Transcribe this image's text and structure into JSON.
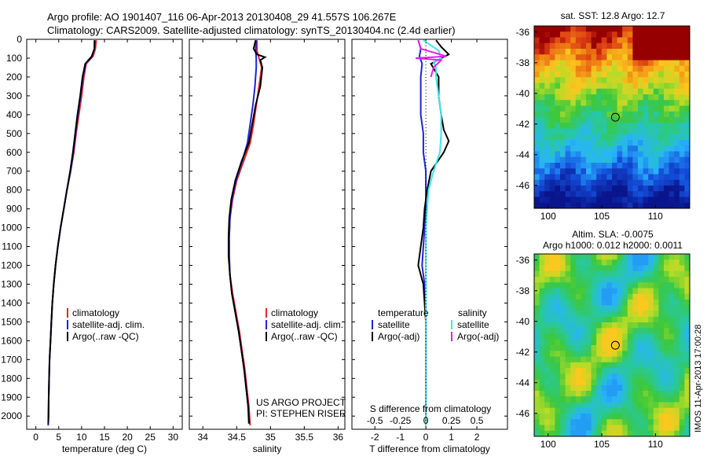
{
  "title_line1": "Argo profile: AO 1901407_116 06-Apr-2013 20130408_29 41.557S 106.267E",
  "title_line2": "Climatology: CARS2009. Satellite-adjusted climatology: synTS_20130404.nc (2.4d earlier)",
  "watermark": "IMOS 11-Apr-2013 17:00:28",
  "credits": [
    "US ARGO PROJECT",
    "PI: STEPHEN RISER"
  ],
  "colors": {
    "climatology": "#e8232a",
    "satellite": "#1d24d8",
    "argo": "#000000",
    "salinity_sat": "#3ee6e6",
    "salinity_argo": "#e61ee6"
  },
  "chart_data": [
    {
      "type": "line",
      "id": "temperature",
      "xlabel": "temperature (deg C)",
      "xlim": [
        -2,
        32
      ],
      "xticks": [
        "0",
        "5",
        "10",
        "15",
        "20",
        "25",
        "30"
      ],
      "ylim": [
        0,
        2070
      ],
      "yticks": [
        "0",
        "100",
        "200",
        "300",
        "400",
        "500",
        "600",
        "700",
        "800",
        "900",
        "1000",
        "1100",
        "1200",
        "1300",
        "1400",
        "1500",
        "1600",
        "1700",
        "1800",
        "1900",
        "2000"
      ],
      "legend": [
        "climatology",
        "satellite-adj. clim.",
        "Argo(..raw -QC)"
      ],
      "series": [
        {
          "name": "climatology",
          "points": [
            [
              13.2,
              5
            ],
            [
              13,
              50
            ],
            [
              12.5,
              90
            ],
            [
              11,
              130
            ],
            [
              10.5,
              200
            ],
            [
              10,
              300
            ],
            [
              9.4,
              400
            ],
            [
              8.8,
              500
            ],
            [
              8.3,
              600
            ],
            [
              7.6,
              700
            ],
            [
              6.8,
              800
            ],
            [
              6.1,
              900
            ],
            [
              5.4,
              1000
            ],
            [
              4.8,
              1100
            ],
            [
              4.3,
              1200
            ],
            [
              3.9,
              1300
            ],
            [
              3.6,
              1400
            ],
            [
              3.4,
              1500
            ],
            [
              3.2,
              1600
            ],
            [
              3.0,
              1700
            ],
            [
              2.9,
              1800
            ],
            [
              2.8,
              1900
            ],
            [
              2.75,
              2000
            ],
            [
              2.7,
              2050
            ]
          ]
        },
        {
          "name": "satellite-adj. clim.",
          "points": [
            [
              12.9,
              5
            ],
            [
              12.8,
              50
            ],
            [
              12.3,
              90
            ],
            [
              10.9,
              130
            ],
            [
              10.3,
              200
            ],
            [
              9.8,
              300
            ],
            [
              9.2,
              400
            ],
            [
              8.7,
              500
            ],
            [
              8.2,
              600
            ],
            [
              7.6,
              700
            ],
            [
              6.8,
              800
            ],
            [
              6.1,
              900
            ],
            [
              5.4,
              1000
            ],
            [
              4.8,
              1100
            ],
            [
              4.3,
              1200
            ],
            [
              3.9,
              1300
            ],
            [
              3.6,
              1400
            ],
            [
              3.4,
              1500
            ],
            [
              3.2,
              1600
            ],
            [
              3.0,
              1700
            ],
            [
              2.9,
              1800
            ],
            [
              2.8,
              1900
            ],
            [
              2.75,
              2000
            ],
            [
              2.7,
              2050
            ]
          ]
        },
        {
          "name": "Argo(..raw -QC)",
          "points": [
            [
              12.8,
              5
            ],
            [
              12.8,
              50
            ],
            [
              12.2,
              90
            ],
            [
              10.8,
              130
            ],
            [
              10.2,
              200
            ],
            [
              9.7,
              300
            ],
            [
              9.1,
              400
            ],
            [
              8.6,
              500
            ],
            [
              8.1,
              600
            ],
            [
              7.5,
              700
            ],
            [
              6.8,
              800
            ],
            [
              6.1,
              900
            ],
            [
              5.4,
              1000
            ],
            [
              4.8,
              1100
            ],
            [
              4.3,
              1200
            ],
            [
              3.9,
              1300
            ],
            [
              3.6,
              1400
            ],
            [
              3.4,
              1500
            ],
            [
              3.2,
              1600
            ],
            [
              3.0,
              1700
            ],
            [
              2.9,
              1800
            ],
            [
              2.8,
              1900
            ],
            [
              2.75,
              2000
            ],
            [
              2.7,
              2040
            ]
          ]
        }
      ]
    },
    {
      "type": "line",
      "id": "salinity",
      "xlabel": "salinity",
      "xlim": [
        33.8,
        36.1
      ],
      "xticks": [
        "34",
        "34.5",
        "35",
        "35.5",
        "36"
      ],
      "ylim": [
        0,
        2070
      ],
      "legend": [
        "climatology",
        "satellite-adj. clim.",
        "Argo(..raw -QC)"
      ],
      "series": [
        {
          "name": "climatology",
          "points": [
            [
              34.8,
              5
            ],
            [
              34.8,
              60
            ],
            [
              34.83,
              100
            ],
            [
              34.87,
              150
            ],
            [
              34.83,
              250
            ],
            [
              34.79,
              350
            ],
            [
              34.75,
              450
            ],
            [
              34.7,
              550
            ],
            [
              34.6,
              650
            ],
            [
              34.5,
              750
            ],
            [
              34.44,
              850
            ],
            [
              34.4,
              950
            ],
            [
              34.39,
              1050
            ],
            [
              34.39,
              1150
            ],
            [
              34.4,
              1250
            ],
            [
              34.44,
              1350
            ],
            [
              34.49,
              1450
            ],
            [
              34.54,
              1550
            ],
            [
              34.58,
              1650
            ],
            [
              34.62,
              1750
            ],
            [
              34.65,
              1850
            ],
            [
              34.68,
              1950
            ],
            [
              34.7,
              2050
            ]
          ]
        },
        {
          "name": "satellite-adj. clim.",
          "points": [
            [
              34.79,
              5
            ],
            [
              34.78,
              60
            ],
            [
              34.79,
              100
            ],
            [
              34.79,
              150
            ],
            [
              34.77,
              250
            ],
            [
              34.74,
              350
            ],
            [
              34.7,
              450
            ],
            [
              34.66,
              550
            ],
            [
              34.58,
              650
            ],
            [
              34.49,
              750
            ],
            [
              34.43,
              850
            ],
            [
              34.4,
              950
            ],
            [
              34.39,
              1050
            ],
            [
              34.39,
              1150
            ],
            [
              34.4,
              1250
            ],
            [
              34.43,
              1350
            ],
            [
              34.48,
              1450
            ],
            [
              34.53,
              1550
            ],
            [
              34.57,
              1650
            ],
            [
              34.61,
              1750
            ],
            [
              34.64,
              1850
            ],
            [
              34.67,
              1950
            ],
            [
              34.69,
              2040
            ]
          ]
        },
        {
          "name": "Argo(..raw -QC)",
          "points": [
            [
              34.78,
              5
            ],
            [
              34.75,
              50
            ],
            [
              34.8,
              80
            ],
            [
              34.92,
              95
            ],
            [
              34.85,
              110
            ],
            [
              34.88,
              150
            ],
            [
              34.85,
              250
            ],
            [
              34.78,
              350
            ],
            [
              34.73,
              450
            ],
            [
              34.68,
              550
            ],
            [
              34.57,
              650
            ],
            [
              34.48,
              750
            ],
            [
              34.42,
              850
            ],
            [
              34.39,
              950
            ],
            [
              34.38,
              1050
            ],
            [
              34.38,
              1150
            ],
            [
              34.4,
              1250
            ],
            [
              34.43,
              1350
            ],
            [
              34.48,
              1450
            ],
            [
              34.53,
              1550
            ],
            [
              34.57,
              1650
            ],
            [
              34.61,
              1750
            ],
            [
              34.64,
              1850
            ],
            [
              34.67,
              1950
            ],
            [
              34.68,
              2040
            ]
          ]
        }
      ]
    },
    {
      "type": "line",
      "id": "differences",
      "xlabel": "T difference from climatology",
      "xlabel_top": "S difference from climatology",
      "xlim": [
        -2.9,
        3.2
      ],
      "xticks": [
        "-2",
        "-1",
        "0",
        "1",
        "2"
      ],
      "sticks": [
        "-0.5",
        "-0.25",
        "0",
        "0.25",
        "0.5"
      ],
      "ylim": [
        0,
        2070
      ],
      "legend_left_title": "temperature",
      "legend_left": [
        "satellite",
        "Argo(-adj)"
      ],
      "legend_right_title": "salinity",
      "legend_right": [
        "satellite",
        "Argo(-adj)"
      ],
      "series": [
        {
          "name": "T satellite",
          "points": [
            [
              -0.3,
              5
            ],
            [
              -0.2,
              50
            ],
            [
              -0.25,
              90
            ],
            [
              -0.15,
              130
            ],
            [
              -0.2,
              200
            ],
            [
              -0.2,
              300
            ],
            [
              -0.2,
              400
            ],
            [
              -0.1,
              500
            ],
            [
              -0.1,
              600
            ],
            [
              0,
              700
            ],
            [
              0,
              800
            ],
            [
              0,
              900
            ],
            [
              -0.05,
              1000
            ],
            [
              -0.1,
              1100
            ],
            [
              -0.15,
              1200
            ],
            [
              -0.05,
              1300
            ],
            [
              0,
              1400
            ],
            [
              0,
              1500
            ],
            [
              0,
              1600
            ],
            [
              0,
              1700
            ],
            [
              0,
              1800
            ],
            [
              0,
              1900
            ],
            [
              0,
              2000
            ],
            [
              0,
              2050
            ]
          ]
        },
        {
          "name": "T Argo(-adj)",
          "points": [
            [
              0.4,
              5
            ],
            [
              0.6,
              40
            ],
            [
              0.9,
              80
            ],
            [
              0.6,
              100
            ],
            [
              0.2,
              130
            ],
            [
              0.5,
              200
            ],
            [
              0.5,
              300
            ],
            [
              0.6,
              400
            ],
            [
              0.7,
              480
            ],
            [
              0.9,
              540
            ],
            [
              0.7,
              600
            ],
            [
              0.2,
              700
            ],
            [
              0.05,
              800
            ],
            [
              -0.05,
              900
            ],
            [
              -0.1,
              1000
            ],
            [
              -0.2,
              1100
            ],
            [
              -0.3,
              1200
            ],
            [
              -0.1,
              1300
            ],
            [
              -0.05,
              1400
            ],
            [
              0,
              1500
            ],
            [
              0,
              1600
            ],
            [
              0,
              1700
            ],
            [
              0,
              1800
            ],
            [
              0,
              1900
            ],
            [
              0,
              2000
            ],
            [
              0,
              2040
            ]
          ]
        },
        {
          "name": "S satellite",
          "points": [
            [
              -0.1,
              5
            ],
            [
              0.5,
              60
            ],
            [
              0.6,
              100
            ],
            [
              0.3,
              120
            ],
            [
              0.4,
              150
            ],
            [
              0.4,
              200
            ],
            [
              0.5,
              300
            ],
            [
              0.6,
              400
            ],
            [
              0.6,
              500
            ],
            [
              0.55,
              600
            ],
            [
              0.3,
              700
            ],
            [
              0.1,
              800
            ],
            [
              0.05,
              900
            ],
            [
              0,
              1000
            ],
            [
              0,
              1100
            ],
            [
              0,
              1200
            ],
            [
              0,
              1300
            ],
            [
              0,
              1400
            ],
            [
              0,
              1500
            ],
            [
              0,
              1600
            ],
            [
              0,
              1700
            ],
            [
              0,
              1800
            ],
            [
              0,
              1900
            ],
            [
              0,
              2000
            ],
            [
              0,
              2050
            ]
          ]
        },
        {
          "name": "S Argo(-adj)",
          "points": [
            [
              -0.3,
              5
            ],
            [
              -0.2,
              50
            ],
            [
              0.8,
              90
            ],
            [
              -0.4,
              100
            ],
            [
              0.6,
              110
            ],
            [
              0.3,
              150
            ],
            [
              0.2,
              200
            ]
          ]
        }
      ]
    },
    {
      "type": "heatmap",
      "id": "sst_map",
      "title": "sat. SST: 12.8 Argo: 12.7",
      "xticks": [
        "100",
        "105",
        "110"
      ],
      "yticks": [
        "-36",
        "-38",
        "-40",
        "-42",
        "-44",
        "-46"
      ],
      "marker": [
        106.267,
        -41.557
      ]
    },
    {
      "type": "heatmap",
      "id": "sla_map",
      "title_line1": "Altim. SLA: -0.0075",
      "title_line2": "Argo h1000: 0.012 h2000: 0.0011",
      "xticks": [
        "100",
        "105",
        "110"
      ],
      "yticks": [
        "-36",
        "-38",
        "-40",
        "-42",
        "-44",
        "-46"
      ],
      "marker": [
        106.267,
        -41.557
      ]
    }
  ]
}
